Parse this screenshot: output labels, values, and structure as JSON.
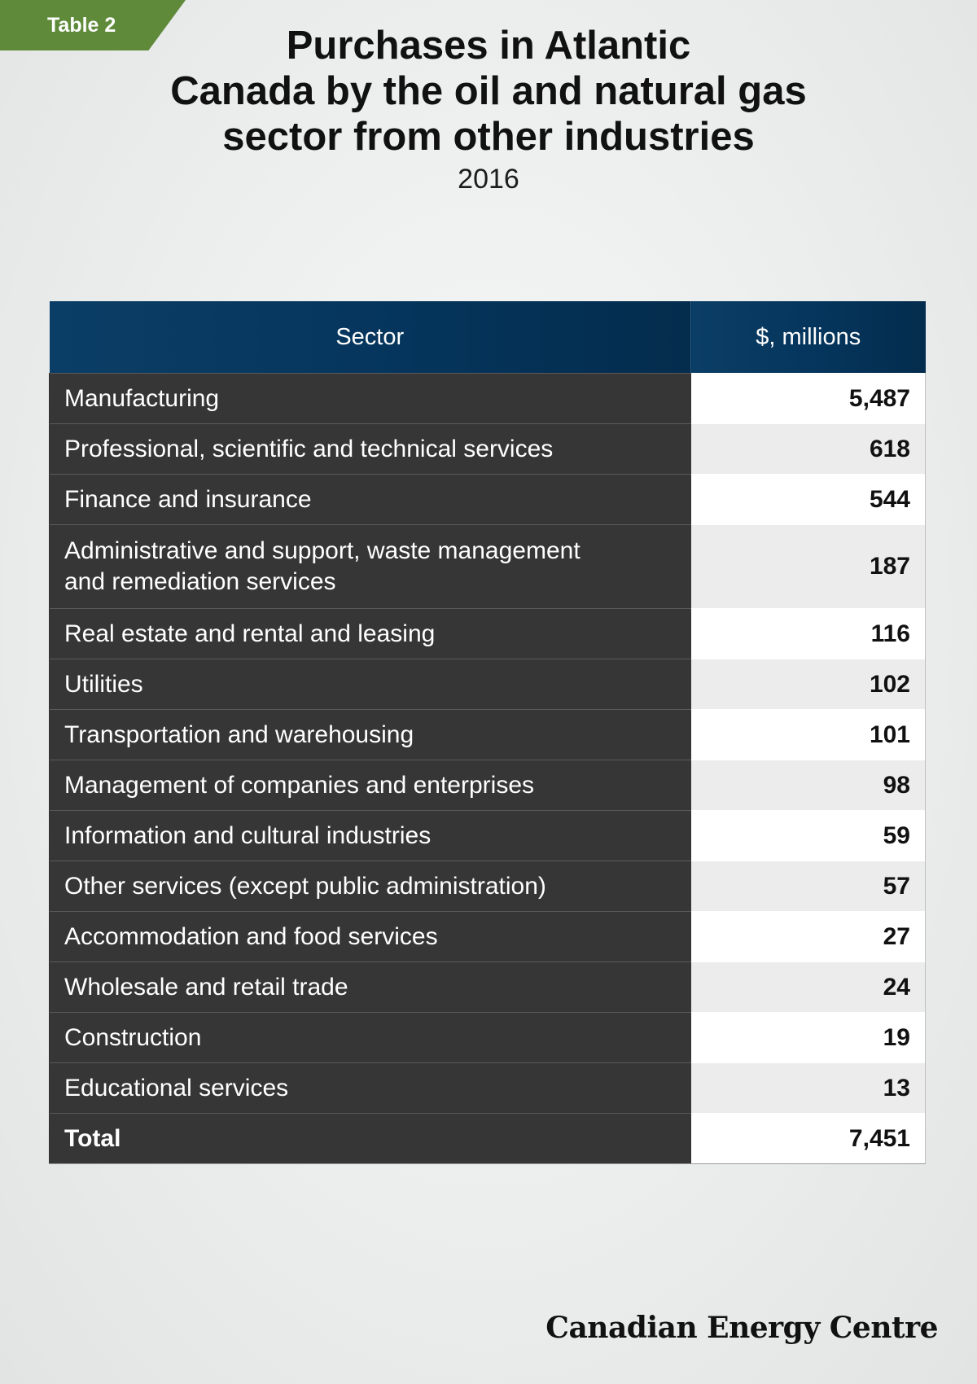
{
  "tag": "Table 2",
  "title_lines": [
    "Purchases in Atlantic",
    "Canada by the oil and natural gas",
    "sector from other industries"
  ],
  "subtitle": "2016",
  "chart_data": {
    "type": "table",
    "columns": [
      "Sector",
      "$, millions"
    ],
    "rows": [
      {
        "sector": "Manufacturing",
        "value": "5,487"
      },
      {
        "sector": "Professional, scientific and technical services",
        "value": "618"
      },
      {
        "sector": "Finance and insurance",
        "value": "544"
      },
      {
        "sector": "Administrative and support, waste management",
        "sector_line2": "and remediation services",
        "value": "187"
      },
      {
        "sector": "Real estate and rental and leasing",
        "value": "116"
      },
      {
        "sector": "Utilities",
        "value": "102"
      },
      {
        "sector": "Transportation and warehousing",
        "value": "101"
      },
      {
        "sector": "Management of companies and enterprises",
        "value": "98"
      },
      {
        "sector": "Information and cultural industries",
        "value": "59"
      },
      {
        "sector": "Other services (except public administration)",
        "value": "57"
      },
      {
        "sector": "Accommodation and food services",
        "value": "27"
      },
      {
        "sector": "Wholesale and retail trade",
        "value": "24"
      },
      {
        "sector": "Construction",
        "value": "19"
      },
      {
        "sector": "Educational services",
        "value": "13"
      }
    ],
    "total": {
      "sector": "Total",
      "value": "7,451"
    }
  },
  "logo": "Canadian Energy Centre"
}
